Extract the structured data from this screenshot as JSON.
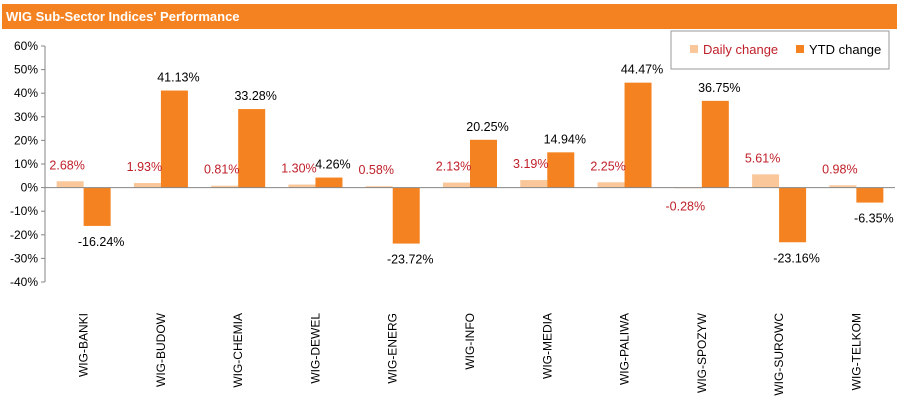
{
  "title": "WIG Sub-Sector Indices' Performance",
  "colors": {
    "title_bar": "#F58220",
    "daily": "#F9C79A",
    "ytd": "#F58220",
    "daily_label": "#C0202A",
    "ytd_label": "#000000"
  },
  "chart_data": {
    "type": "bar",
    "categories": [
      "WIG-BANKI",
      "WIG-BUDOW",
      "WIG-CHEMIA",
      "WIG-DEWEL",
      "WIG-ENERG",
      "WIG-INFO",
      "WIG-MEDIA",
      "WIG-PALIWA",
      "WIG-SPOZYW",
      "WIG-SUROWC",
      "WIG-TELKOM"
    ],
    "series": [
      {
        "name": "Daily change",
        "values": [
          2.68,
          1.93,
          0.81,
          1.3,
          0.58,
          2.13,
          3.19,
          2.25,
          -0.28,
          5.61,
          0.98
        ],
        "labels": [
          "2.68%",
          "1.93%",
          "0.81%",
          "1.30%",
          "0.58%",
          "2.13%",
          "3.19%",
          "2.25%",
          "-0.28%",
          "5.61%",
          "0.98%"
        ]
      },
      {
        "name": "YTD change",
        "values": [
          -16.24,
          41.13,
          33.28,
          4.26,
          -23.72,
          20.25,
          14.94,
          44.47,
          36.75,
          -23.16,
          -6.35
        ],
        "labels": [
          "-16.24%",
          "41.13%",
          "33.28%",
          "4.26%",
          "-23.72%",
          "20.25%",
          "14.94%",
          "44.47%",
          "36.75%",
          "-23.16%",
          "-6.35%"
        ]
      }
    ],
    "ylim": [
      -40,
      60
    ],
    "yticks": [
      60,
      50,
      40,
      30,
      20,
      10,
      0,
      -10,
      -20,
      -30,
      -40
    ],
    "ytick_labels": [
      "60%",
      "50%",
      "40%",
      "30%",
      "20%",
      "10%",
      "0%",
      "-10%",
      "-20%",
      "-30%",
      "-40%"
    ],
    "grid": false,
    "legend_position": "top-right"
  }
}
